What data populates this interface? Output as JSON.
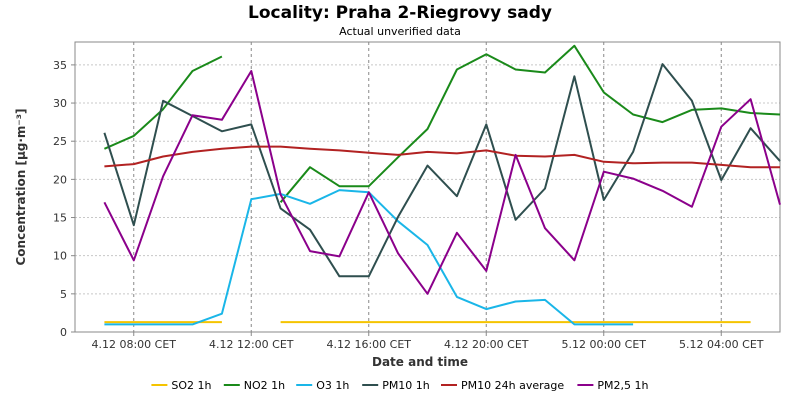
{
  "chart_data": {
    "type": "line",
    "title": "Locality: Praha 2-Riegrovy sady",
    "subtitle": "Actual unverified data",
    "xlabel": "Date and time",
    "ylabel": "Concentration [µg·m⁻³]",
    "ylim": [
      0,
      38
    ],
    "yticks": [
      0,
      5,
      10,
      15,
      20,
      25,
      30,
      35
    ],
    "x_range": [
      "4.12 06:00",
      "5.12 06:00"
    ],
    "xticks": [
      {
        "label": "4.12 08:00 CET",
        "hour": 8
      },
      {
        "label": "4.12 12:00 CET",
        "hour": 12
      },
      {
        "label": "4.12 16:00 CET",
        "hour": 16
      },
      {
        "label": "4.12 20:00 CET",
        "hour": 20
      },
      {
        "label": "5.12 00:00 CET",
        "hour": 24
      },
      {
        "label": "5.12 04:00 CET",
        "hour": 28
      }
    ],
    "grid": true,
    "legend_position": "bottom",
    "series": [
      {
        "name": "SO2 1h",
        "color": "#f5c400",
        "points": [
          [
            7,
            1.3
          ],
          [
            8,
            1.3
          ],
          [
            9,
            1.3
          ],
          [
            10,
            1.3
          ],
          [
            11,
            1.3
          ],
          null,
          [
            13,
            1.3
          ],
          [
            14,
            1.3
          ],
          [
            15,
            1.3
          ],
          [
            16,
            1.3
          ],
          [
            17,
            1.3
          ],
          [
            18,
            1.3
          ],
          [
            19,
            1.3
          ],
          [
            20,
            1.3
          ],
          [
            21,
            1.3
          ],
          [
            22,
            1.3
          ],
          [
            23,
            1.3
          ],
          [
            24,
            1.3
          ],
          [
            25,
            1.3
          ],
          [
            26,
            1.3
          ],
          [
            27,
            1.3
          ],
          [
            28,
            1.3
          ],
          [
            29,
            1.3
          ]
        ]
      },
      {
        "name": "NO2 1h",
        "color": "#1a8a1a",
        "points": [
          [
            7,
            24.0
          ],
          [
            8,
            25.7
          ],
          [
            9,
            29.2
          ],
          [
            10,
            34.2
          ],
          [
            11,
            36.1
          ],
          null,
          [
            13,
            17.0
          ],
          [
            14,
            21.6
          ],
          [
            15,
            19.1
          ],
          [
            16,
            19.1
          ],
          [
            17,
            22.9
          ],
          [
            18,
            26.6
          ],
          [
            19,
            34.4
          ],
          [
            20,
            36.4
          ],
          [
            21,
            34.4
          ],
          [
            22,
            34.0
          ],
          [
            23,
            37.5
          ],
          [
            24,
            31.4
          ],
          [
            25,
            28.5
          ],
          [
            26,
            27.5
          ],
          [
            27,
            29.1
          ],
          [
            28,
            29.3
          ],
          [
            29,
            28.7
          ],
          [
            30,
            28.5
          ]
        ]
      },
      {
        "name": "O3 1h",
        "color": "#1ab6e8",
        "points": [
          [
            7,
            1.0
          ],
          [
            8,
            1.0
          ],
          [
            9,
            1.0
          ],
          [
            10,
            1.0
          ],
          [
            11,
            2.4
          ],
          [
            12,
            17.4
          ],
          [
            13,
            18.1
          ],
          [
            14,
            16.8
          ],
          [
            15,
            18.6
          ],
          [
            16,
            18.3
          ],
          [
            17,
            14.5
          ],
          [
            18,
            11.4
          ],
          [
            19,
            4.6
          ],
          [
            20,
            3.0
          ],
          [
            21,
            4.0
          ],
          [
            22,
            4.2
          ],
          [
            23,
            1.0
          ],
          [
            24,
            1.0
          ],
          [
            25,
            1.0
          ]
        ]
      },
      {
        "name": "PM10 1h",
        "color": "#2f4f4f",
        "points": [
          [
            7,
            26.1
          ],
          [
            8,
            14.0
          ],
          [
            9,
            30.3
          ],
          [
            10,
            28.3
          ],
          [
            11,
            26.3
          ],
          [
            12,
            27.2
          ],
          [
            13,
            16.2
          ],
          [
            14,
            13.4
          ],
          [
            15,
            7.3
          ],
          [
            16,
            7.3
          ],
          [
            17,
            15.1
          ],
          [
            18,
            21.8
          ],
          [
            19,
            17.8
          ],
          [
            20,
            27.2
          ],
          [
            21,
            14.7
          ],
          [
            22,
            18.8
          ],
          [
            23,
            33.5
          ],
          [
            24,
            17.3
          ],
          [
            25,
            23.6
          ],
          [
            26,
            35.1
          ],
          [
            27,
            30.3
          ],
          [
            28,
            19.9
          ],
          [
            29,
            26.7
          ],
          [
            30,
            22.4
          ]
        ]
      },
      {
        "name": "PM10 24h average",
        "color": "#b22222",
        "points": [
          [
            7,
            21.7
          ],
          [
            8,
            22.0
          ],
          [
            9,
            23.0
          ],
          [
            10,
            23.6
          ],
          [
            11,
            24.0
          ],
          [
            12,
            24.3
          ],
          [
            13,
            24.3
          ],
          [
            14,
            24.0
          ],
          [
            15,
            23.8
          ],
          [
            16,
            23.5
          ],
          [
            17,
            23.2
          ],
          [
            18,
            23.6
          ],
          [
            19,
            23.4
          ],
          [
            20,
            23.8
          ],
          [
            21,
            23.1
          ],
          [
            22,
            23.0
          ],
          [
            23,
            23.2
          ],
          [
            24,
            22.3
          ],
          [
            25,
            22.1
          ],
          [
            26,
            22.2
          ],
          [
            27,
            22.2
          ],
          [
            28,
            21.9
          ],
          [
            29,
            21.6
          ],
          [
            30,
            21.6
          ]
        ]
      },
      {
        "name": "PM2,5 1h",
        "color": "#8b008b",
        "points": [
          [
            7,
            17.0
          ],
          [
            8,
            9.4
          ],
          [
            9,
            20.4
          ],
          [
            10,
            28.4
          ],
          [
            11,
            27.8
          ],
          [
            12,
            34.2
          ],
          [
            13,
            18.0
          ],
          [
            14,
            10.6
          ],
          [
            15,
            9.9
          ],
          [
            16,
            18.3
          ],
          [
            17,
            10.3
          ],
          [
            18,
            5.0
          ],
          [
            19,
            13.0
          ],
          [
            20,
            8.0
          ],
          [
            21,
            23.2
          ],
          [
            22,
            13.6
          ],
          [
            23,
            9.4
          ],
          [
            24,
            21.0
          ],
          [
            25,
            20.1
          ],
          [
            26,
            18.5
          ],
          [
            27,
            16.4
          ],
          [
            28,
            26.9
          ],
          [
            29,
            30.5
          ],
          [
            30,
            16.7
          ]
        ]
      }
    ]
  }
}
